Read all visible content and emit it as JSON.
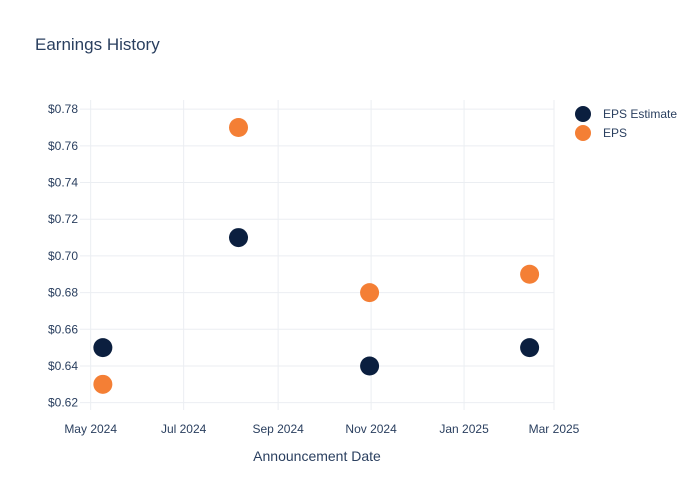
{
  "chart_data": {
    "type": "scatter",
    "title": "Earnings History",
    "xlabel": "Announcement Date",
    "ylabel": "",
    "x_ticks": [
      {
        "label": "May 2024",
        "date": "2024-05-01"
      },
      {
        "label": "Jul 2024",
        "date": "2024-07-01"
      },
      {
        "label": "Sep 2024",
        "date": "2024-09-01"
      },
      {
        "label": "Nov 2024",
        "date": "2024-11-01"
      },
      {
        "label": "Jan 2025",
        "date": "2025-01-01"
      },
      {
        "label": "Mar 2025",
        "date": "2025-03-01"
      }
    ],
    "xlim": [
      "2024-04-24",
      "2025-03-01"
    ],
    "y_ticks": [
      {
        "value": 0.62,
        "label": "$0.62"
      },
      {
        "value": 0.64,
        "label": "$0.64"
      },
      {
        "value": 0.66,
        "label": "$0.66"
      },
      {
        "value": 0.68,
        "label": "$0.68"
      },
      {
        "value": 0.7,
        "label": "$0.70"
      },
      {
        "value": 0.72,
        "label": "$0.72"
      },
      {
        "value": 0.74,
        "label": "$0.74"
      },
      {
        "value": 0.76,
        "label": "$0.76"
      },
      {
        "value": 0.78,
        "label": "$0.78"
      }
    ],
    "ylim": [
      0.616,
      0.785
    ],
    "grid": true,
    "legend": "top-right",
    "series": [
      {
        "name": "EPS Estimate",
        "color": "#0b1f3f",
        "points": [
          {
            "x": "2024-05-09",
            "y": 0.65
          },
          {
            "x": "2024-08-06",
            "y": 0.71
          },
          {
            "x": "2024-10-31",
            "y": 0.64
          },
          {
            "x": "2025-02-13",
            "y": 0.65
          }
        ]
      },
      {
        "name": "EPS",
        "color": "#f47f35",
        "points": [
          {
            "x": "2024-05-09",
            "y": 0.63
          },
          {
            "x": "2024-08-06",
            "y": 0.77
          },
          {
            "x": "2024-10-31",
            "y": 0.68
          },
          {
            "x": "2025-02-13",
            "y": 0.69
          }
        ]
      }
    ]
  }
}
